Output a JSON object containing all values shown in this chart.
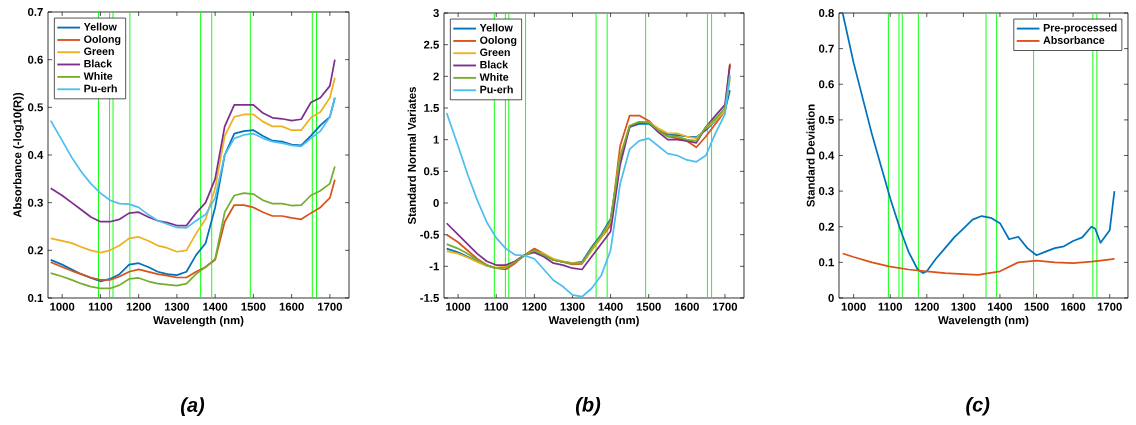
{
  "chart_data": [
    {
      "type": "line",
      "xlabel": "Wavelength (nm)",
      "ylabel": "Absorbance (-log10(R))",
      "annotations": [
        "(a)"
      ],
      "legend": "top left",
      "marker": "none",
      "line_style": "solid",
      "xlim": [
        963,
        1750
      ],
      "xticks": [
        1000,
        1100,
        1200,
        1300,
        1400,
        1500,
        1600,
        1700
      ],
      "ylim": [
        0.1,
        0.7
      ],
      "yticks": [
        0.1,
        0.2,
        0.3,
        0.4,
        0.5,
        0.6,
        0.7
      ],
      "x": [
        970,
        1000,
        1025,
        1050,
        1075,
        1100,
        1125,
        1150,
        1175,
        1200,
        1225,
        1250,
        1275,
        1300,
        1325,
        1350,
        1375,
        1400,
        1425,
        1450,
        1475,
        1500,
        1525,
        1550,
        1575,
        1600,
        1625,
        1650,
        1675,
        1700,
        1713
      ],
      "ref_lines": [
        {
          "axis": "x",
          "value": 1095,
          "color": "#00ff00"
        },
        {
          "axis": "x",
          "value": 1124,
          "color": "#00ff00"
        },
        {
          "axis": "x",
          "value": 1133,
          "color": "#00ff00"
        },
        {
          "axis": "x",
          "value": 1177,
          "color": "#00ff00"
        },
        {
          "axis": "x",
          "value": 1362,
          "color": "#00ff00"
        },
        {
          "axis": "x",
          "value": 1391,
          "color": "#00ff00"
        },
        {
          "axis": "x",
          "value": 1492,
          "color": "#00ff00"
        },
        {
          "axis": "x",
          "value": 1654,
          "color": "#00ff00"
        },
        {
          "axis": "x",
          "value": 1665,
          "color": "#00ff00"
        }
      ],
      "series": [
        {
          "name": "Yellow",
          "color": "#0072bd",
          "values": [
            0.18,
            0.17,
            0.16,
            0.15,
            0.142,
            0.135,
            0.14,
            0.15,
            0.17,
            0.173,
            0.165,
            0.155,
            0.15,
            0.148,
            0.155,
            0.19,
            0.215,
            0.29,
            0.4,
            0.445,
            0.45,
            0.452,
            0.44,
            0.43,
            0.428,
            0.422,
            0.42,
            0.44,
            0.462,
            0.48,
            0.52
          ]
        },
        {
          "name": "Oolong",
          "color": "#d95319",
          "values": [
            0.175,
            0.165,
            0.157,
            0.15,
            0.143,
            0.138,
            0.138,
            0.145,
            0.155,
            0.16,
            0.155,
            0.15,
            0.147,
            0.143,
            0.143,
            0.155,
            0.165,
            0.18,
            0.26,
            0.295,
            0.295,
            0.29,
            0.28,
            0.272,
            0.272,
            0.268,
            0.265,
            0.278,
            0.29,
            0.31,
            0.348
          ]
        },
        {
          "name": "Green",
          "color": "#edb120",
          "values": [
            0.225,
            0.22,
            0.215,
            0.207,
            0.2,
            0.195,
            0.2,
            0.21,
            0.225,
            0.228,
            0.22,
            0.21,
            0.205,
            0.197,
            0.2,
            0.235,
            0.265,
            0.33,
            0.44,
            0.48,
            0.485,
            0.485,
            0.47,
            0.46,
            0.46,
            0.452,
            0.452,
            0.478,
            0.49,
            0.52,
            0.562
          ]
        },
        {
          "name": "Black",
          "color": "#7e2f8e",
          "values": [
            0.33,
            0.315,
            0.3,
            0.285,
            0.27,
            0.26,
            0.26,
            0.265,
            0.278,
            0.28,
            0.27,
            0.262,
            0.258,
            0.252,
            0.252,
            0.278,
            0.3,
            0.35,
            0.46,
            0.505,
            0.505,
            0.505,
            0.488,
            0.478,
            0.476,
            0.472,
            0.475,
            0.51,
            0.52,
            0.545,
            0.6
          ]
        },
        {
          "name": "White",
          "color": "#77ac30",
          "values": [
            0.152,
            0.145,
            0.138,
            0.13,
            0.124,
            0.12,
            0.12,
            0.127,
            0.14,
            0.142,
            0.135,
            0.13,
            0.128,
            0.126,
            0.13,
            0.15,
            0.165,
            0.182,
            0.28,
            0.315,
            0.32,
            0.318,
            0.305,
            0.298,
            0.298,
            0.294,
            0.295,
            0.315,
            0.325,
            0.34,
            0.376
          ]
        },
        {
          "name": "Pu-erh",
          "color": "#4dbeee",
          "values": [
            0.472,
            0.43,
            0.395,
            0.365,
            0.34,
            0.32,
            0.305,
            0.298,
            0.297,
            0.29,
            0.275,
            0.262,
            0.255,
            0.248,
            0.247,
            0.262,
            0.275,
            0.31,
            0.4,
            0.435,
            0.442,
            0.445,
            0.435,
            0.428,
            0.425,
            0.42,
            0.418,
            0.435,
            0.45,
            0.48,
            0.52
          ]
        }
      ]
    },
    {
      "type": "line",
      "xlabel": "Wavelength (nm)",
      "ylabel": "Standard Normal Variates",
      "annotations": [
        "(b)"
      ],
      "legend": "top left",
      "marker": "none",
      "line_style": "solid",
      "xlim": [
        963,
        1750
      ],
      "xticks": [
        1000,
        1100,
        1200,
        1300,
        1400,
        1500,
        1600,
        1700
      ],
      "ylim": [
        -1.5,
        3
      ],
      "yticks": [
        -1.5,
        -1,
        -0.5,
        0,
        0.5,
        1,
        1.5,
        2,
        2.5,
        3
      ],
      "x": [
        970,
        1000,
        1025,
        1050,
        1075,
        1100,
        1125,
        1150,
        1175,
        1200,
        1225,
        1250,
        1275,
        1300,
        1325,
        1350,
        1375,
        1400,
        1425,
        1450,
        1475,
        1500,
        1525,
        1550,
        1575,
        1600,
        1625,
        1650,
        1675,
        1700,
        1713
      ],
      "ref_lines": [
        {
          "axis": "x",
          "value": 1095,
          "color": "#00ff00"
        },
        {
          "axis": "x",
          "value": 1124,
          "color": "#00ff00"
        },
        {
          "axis": "x",
          "value": 1133,
          "color": "#00ff00"
        },
        {
          "axis": "x",
          "value": 1177,
          "color": "#00ff00"
        },
        {
          "axis": "x",
          "value": 1362,
          "color": "#00ff00"
        },
        {
          "axis": "x",
          "value": 1391,
          "color": "#00ff00"
        },
        {
          "axis": "x",
          "value": 1492,
          "color": "#00ff00"
        },
        {
          "axis": "x",
          "value": 1654,
          "color": "#00ff00"
        },
        {
          "axis": "x",
          "value": 1665,
          "color": "#00ff00"
        }
      ],
      "series": [
        {
          "name": "Yellow",
          "color": "#0072bd",
          "values": [
            -0.72,
            -0.78,
            -0.85,
            -0.92,
            -0.99,
            -1.03,
            -1.0,
            -0.92,
            -0.82,
            -0.75,
            -0.82,
            -0.9,
            -0.93,
            -0.95,
            -0.93,
            -0.7,
            -0.5,
            -0.25,
            0.7,
            1.2,
            1.25,
            1.25,
            1.15,
            1.08,
            1.07,
            1.05,
            1.04,
            1.15,
            1.3,
            1.45,
            1.78
          ]
        },
        {
          "name": "Oolong",
          "color": "#d95319",
          "values": [
            -0.5,
            -0.62,
            -0.75,
            -0.88,
            -0.98,
            -1.03,
            -1.05,
            -0.95,
            -0.82,
            -0.72,
            -0.8,
            -0.9,
            -0.93,
            -0.97,
            -0.96,
            -0.75,
            -0.55,
            -0.35,
            0.9,
            1.38,
            1.38,
            1.3,
            1.15,
            1.05,
            1.02,
            0.98,
            0.88,
            1.05,
            1.25,
            1.45,
            2.2
          ]
        },
        {
          "name": "Green",
          "color": "#edb120",
          "values": [
            -0.76,
            -0.8,
            -0.86,
            -0.93,
            -0.99,
            -1.02,
            -1.0,
            -0.92,
            -0.82,
            -0.76,
            -0.8,
            -0.88,
            -0.92,
            -0.95,
            -0.95,
            -0.75,
            -0.55,
            -0.3,
            0.75,
            1.22,
            1.28,
            1.28,
            1.18,
            1.1,
            1.1,
            1.05,
            1.02,
            1.18,
            1.3,
            1.45,
            1.95
          ]
        },
        {
          "name": "Black",
          "color": "#7e2f8e",
          "values": [
            -0.32,
            -0.5,
            -0.65,
            -0.8,
            -0.92,
            -0.98,
            -0.98,
            -0.92,
            -0.82,
            -0.78,
            -0.85,
            -0.95,
            -0.98,
            -1.03,
            -1.05,
            -0.85,
            -0.65,
            -0.45,
            0.6,
            1.2,
            1.27,
            1.27,
            1.12,
            1.0,
            1.0,
            0.98,
            0.95,
            1.2,
            1.38,
            1.55,
            2.18
          ]
        },
        {
          "name": "White",
          "color": "#77ac30",
          "values": [
            -0.65,
            -0.72,
            -0.8,
            -0.9,
            -0.98,
            -1.03,
            -1.02,
            -0.93,
            -0.83,
            -0.75,
            -0.82,
            -0.9,
            -0.93,
            -0.96,
            -0.95,
            -0.72,
            -0.52,
            -0.28,
            0.72,
            1.22,
            1.28,
            1.27,
            1.15,
            1.05,
            1.05,
            1.0,
            0.98,
            1.2,
            1.33,
            1.5,
            2.0
          ]
        },
        {
          "name": "Pu-erh",
          "color": "#4dbeee",
          "values": [
            1.42,
            0.9,
            0.45,
            0.05,
            -0.3,
            -0.55,
            -0.72,
            -0.82,
            -0.83,
            -0.88,
            -1.05,
            -1.22,
            -1.32,
            -1.45,
            -1.48,
            -1.35,
            -1.15,
            -0.75,
            0.3,
            0.85,
            0.98,
            1.02,
            0.9,
            0.78,
            0.75,
            0.68,
            0.65,
            0.75,
            1.1,
            1.4,
            2.02
          ]
        }
      ]
    },
    {
      "type": "line",
      "xlabel": "Wavelength (nm)",
      "ylabel": "Standard Deviation",
      "annotations": [
        "(c)"
      ],
      "legend": "top right",
      "marker": "none",
      "line_style": "solid",
      "xlim": [
        960,
        1750
      ],
      "xticks": [
        1000,
        1100,
        1200,
        1300,
        1400,
        1500,
        1600,
        1700
      ],
      "ylim": [
        0,
        0.8
      ],
      "yticks": [
        0,
        0.1,
        0.2,
        0.3,
        0.4,
        0.5,
        0.6,
        0.7,
        0.8
      ],
      "ref_lines": [
        {
          "axis": "x",
          "value": 1095,
          "color": "#00ff00"
        },
        {
          "axis": "x",
          "value": 1124,
          "color": "#00ff00"
        },
        {
          "axis": "x",
          "value": 1133,
          "color": "#00ff00"
        },
        {
          "axis": "x",
          "value": 1177,
          "color": "#00ff00"
        },
        {
          "axis": "x",
          "value": 1362,
          "color": "#00ff00"
        },
        {
          "axis": "x",
          "value": 1391,
          "color": "#00ff00"
        },
        {
          "axis": "x",
          "value": 1492,
          "color": "#00ff00"
        },
        {
          "axis": "x",
          "value": 1654,
          "color": "#00ff00"
        },
        {
          "axis": "x",
          "value": 1665,
          "color": "#00ff00"
        }
      ],
      "series": [
        {
          "name": "Pre-processed",
          "color": "#0072bd",
          "x": [
            970,
            1000,
            1025,
            1050,
            1075,
            1100,
            1125,
            1150,
            1175,
            1190,
            1200,
            1225,
            1250,
            1275,
            1300,
            1325,
            1350,
            1375,
            1400,
            1425,
            1450,
            1475,
            1500,
            1525,
            1550,
            1575,
            1600,
            1625,
            1650,
            1660,
            1675,
            1700,
            1713
          ],
          "values": [
            0.8,
            0.66,
            0.56,
            0.46,
            0.37,
            0.28,
            0.2,
            0.13,
            0.08,
            0.07,
            0.075,
            0.11,
            0.14,
            0.17,
            0.195,
            0.22,
            0.23,
            0.225,
            0.21,
            0.165,
            0.172,
            0.14,
            0.12,
            0.13,
            0.14,
            0.145,
            0.16,
            0.17,
            0.2,
            0.195,
            0.155,
            0.19,
            0.3
          ]
        },
        {
          "name": "Absorbance",
          "color": "#d95319",
          "x": [
            970,
            1000,
            1050,
            1100,
            1150,
            1200,
            1250,
            1300,
            1340,
            1400,
            1450,
            1500,
            1550,
            1600,
            1650,
            1675,
            1713
          ],
          "values": [
            0.125,
            0.115,
            0.1,
            0.088,
            0.08,
            0.075,
            0.07,
            0.067,
            0.065,
            0.075,
            0.1,
            0.105,
            0.1,
            0.098,
            0.102,
            0.105,
            0.11
          ]
        }
      ]
    }
  ]
}
